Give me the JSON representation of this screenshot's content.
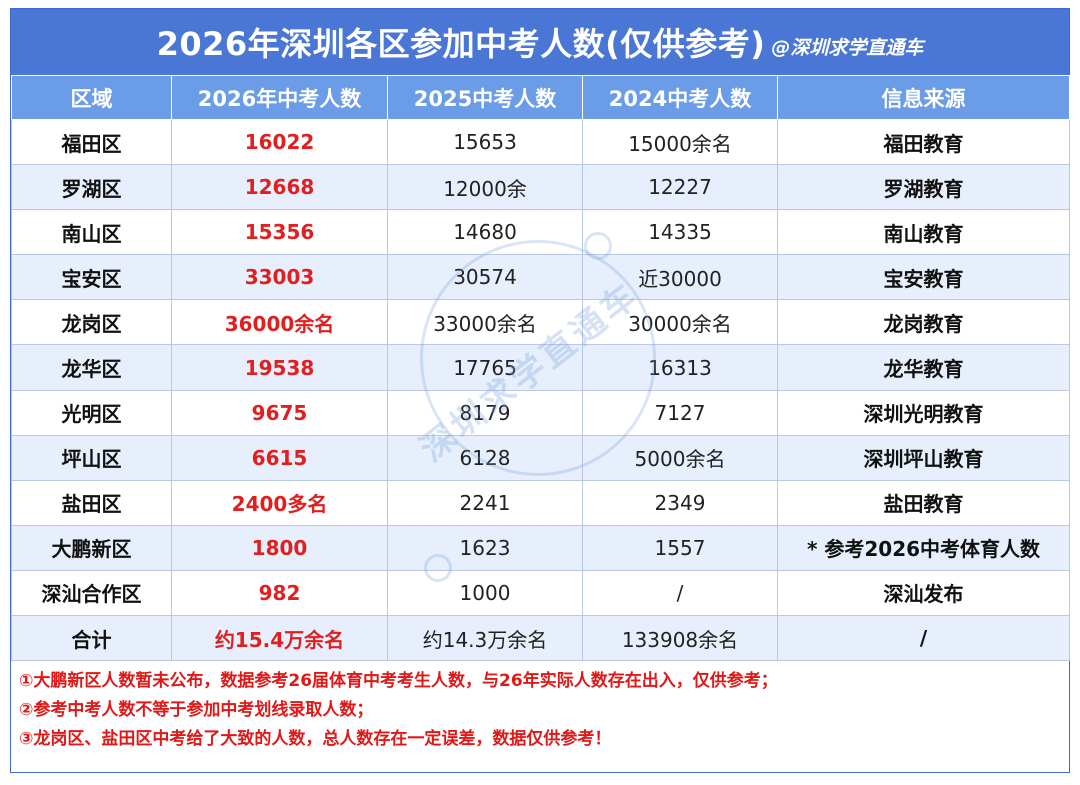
{
  "title": "2026年深圳各区参加中考人数(仅供参考)",
  "handle": "@深圳求学直通车",
  "watermark": "深圳求学直通车",
  "columns": [
    "区域",
    "2026年中考人数",
    "2025中考人数",
    "2024中考人数",
    "信息来源"
  ],
  "rows": [
    {
      "district": "福田区",
      "y2026": "16022",
      "y2025": "15653",
      "y2024": "15000余名",
      "source": "福田教育"
    },
    {
      "district": "罗湖区",
      "y2026": "12668",
      "y2025": "12000余",
      "y2024": "12227",
      "source": "罗湖教育"
    },
    {
      "district": "南山区",
      "y2026": "15356",
      "y2025": "14680",
      "y2024": "14335",
      "source": "南山教育"
    },
    {
      "district": "宝安区",
      "y2026": "33003",
      "y2025": "30574",
      "y2024": "近30000",
      "source": "宝安教育"
    },
    {
      "district": "龙岗区",
      "y2026": "36000余名",
      "y2025": "33000余名",
      "y2024": "30000余名",
      "source": "龙岗教育"
    },
    {
      "district": "龙华区",
      "y2026": "19538",
      "y2025": "17765",
      "y2024": "16313",
      "source": "龙华教育"
    },
    {
      "district": "光明区",
      "y2026": "9675",
      "y2025": "8179",
      "y2024": "7127",
      "source": "深圳光明教育"
    },
    {
      "district": "坪山区",
      "y2026": "6615",
      "y2025": "6128",
      "y2024": "5000余名",
      "source": "深圳坪山教育"
    },
    {
      "district": "盐田区",
      "y2026": "2400多名",
      "y2025": "2241",
      "y2024": "2349",
      "source": "盐田教育"
    },
    {
      "district": "大鹏新区",
      "y2026": "1800",
      "y2025": "1623",
      "y2024": "1557",
      "source": "* 参考2026中考体育人数"
    },
    {
      "district": "深汕合作区",
      "y2026": "982",
      "y2025": "1000",
      "y2024": "/",
      "source": "深汕发布"
    },
    {
      "district": "合计",
      "y2026": "约15.4万余名",
      "y2025": "约14.3万余名",
      "y2024": "133908余名",
      "source": "/"
    }
  ],
  "notes": [
    "①大鹏新区人数暂未公布，数据参考26届体育中考考生人数，与26年实际人数存在出入，仅供参考；",
    "②参考中考人数不等于参加中考划线录取人数；",
    "③龙岗区、盐田区中考给了大致的人数，总人数存在一定误差，数据仅供参考！"
  ],
  "colors": {
    "title_bg": "#4a77d6",
    "header_bg": "#6b9ce8",
    "stripe": "#e6effb",
    "highlight": "#e02020"
  }
}
